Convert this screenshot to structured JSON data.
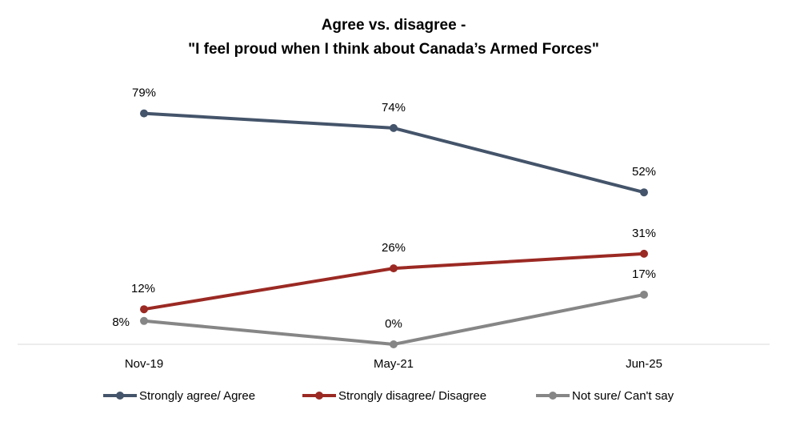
{
  "chart_data": {
    "type": "line",
    "title_line1": "Agree vs. disagree -",
    "title_line2": "\"I feel proud when I think about Canada’s Armed Forces\"",
    "categories": [
      "Nov-19",
      "May-21",
      "Jun-25"
    ],
    "ylim": [
      0,
      100
    ],
    "grid": false,
    "legend_position": "bottom",
    "series": [
      {
        "name": "Strongly agree/ Agree",
        "values": [
          79,
          74,
          52
        ],
        "labels": [
          "79%",
          "74%",
          "52%"
        ],
        "color": "#44546A"
      },
      {
        "name": "Strongly disagree/ Disagree",
        "values": [
          12,
          26,
          31
        ],
        "labels": [
          "12%",
          "26%",
          "31%"
        ],
        "color": "#9B2923"
      },
      {
        "name": "Not sure/ Can't say",
        "values": [
          8,
          0,
          17
        ],
        "labels": [
          "8%",
          "0%",
          "17%"
        ],
        "color": "#868686"
      }
    ]
  }
}
